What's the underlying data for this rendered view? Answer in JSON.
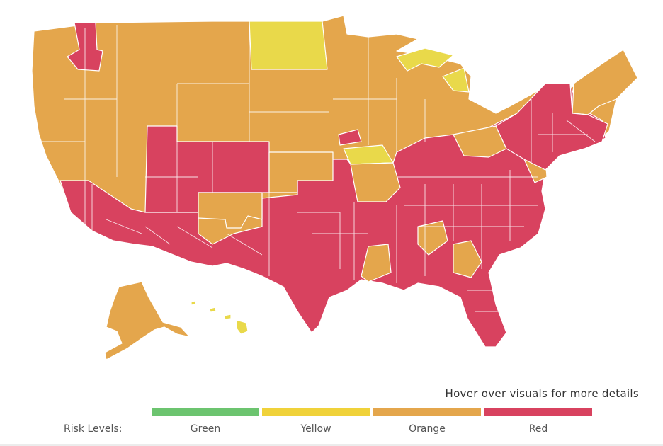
{
  "hover_note": "Hover over visuals for more details",
  "legend": {
    "title": "Risk Levels:",
    "levels": [
      {
        "label": "Green",
        "color": "#6cc46f"
      },
      {
        "label": "Yellow",
        "color": "#f0d23a"
      },
      {
        "label": "Orange",
        "color": "#e4a64c"
      },
      {
        "label": "Red",
        "color": "#d8425f"
      }
    ]
  },
  "map_colors": {
    "orange": "#e4a64c",
    "red": "#d8425f",
    "yellow": "#e9d94a",
    "border": "#ffffff"
  }
}
